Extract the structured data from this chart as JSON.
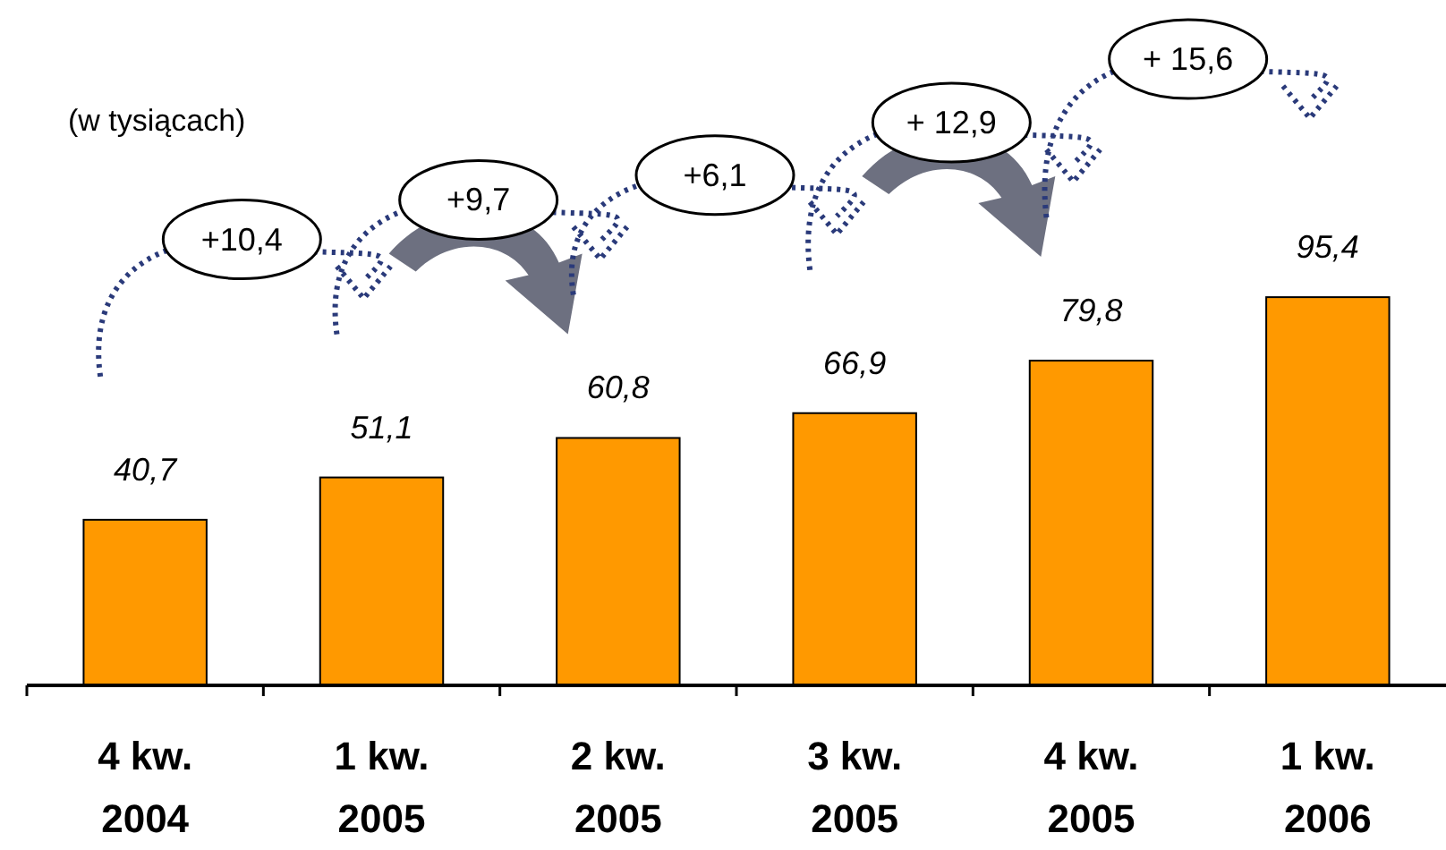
{
  "chart_data": {
    "type": "bar",
    "categories": [
      "4 kw. 2004",
      "1 kw. 2005",
      "2 kw. 2005",
      "3 kw. 2005",
      "4 kw. 2005",
      "1 kw. 2006"
    ],
    "values": [
      40.7,
      51.1,
      60.8,
      66.9,
      79.8,
      95.4
    ],
    "color": "#ff9900",
    "data_labels": true,
    "value_labels": [
      "40,7",
      "51,1",
      "60,8",
      "66,9",
      "79,8",
      "95,4"
    ],
    "annotations": [
      "(w tysiącach)",
      "+10,4",
      "+9,7",
      "+6,1",
      "+ 12,9",
      "+ 15,6"
    ]
  }
}
